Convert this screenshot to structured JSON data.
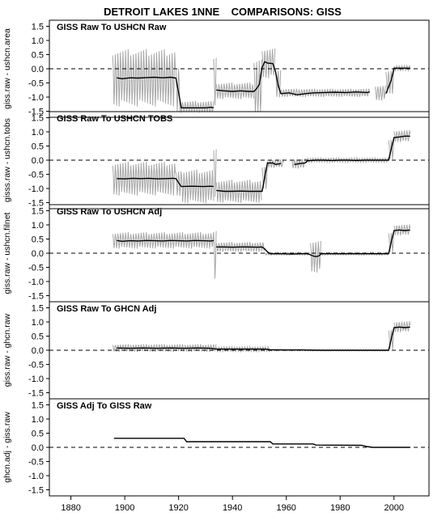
{
  "chart_data": {
    "type": "line",
    "title": "DETROIT LAKES 1NNE    COMPARISONS: GISS",
    "xlim": [
      1872,
      2013
    ],
    "x_ticks": [
      1880,
      1900,
      1920,
      1940,
      1960,
      1980,
      2000
    ],
    "ylim": [
      -1.6,
      1.6
    ],
    "y_ticks": [
      1.5,
      1.0,
      0.5,
      0.0,
      -0.5,
      -1.0,
      -1.5
    ],
    "y_tick_labels": [
      "1.5",
      "1.0",
      "0.5",
      "0.0",
      "-0.5",
      "-1.0",
      "-1.5"
    ],
    "reference_line": 0,
    "series_colors": {
      "monthly": "#a6a6a6",
      "annual": "#000000",
      "reference": "#000000"
    },
    "panels": [
      {
        "title": "GISS Raw To USHCN Raw",
        "ylabel": "giss.raw - ushcn.area",
        "annual_segments": [
          [
            [
              1897,
              -0.32
            ],
            [
              1899,
              -0.35
            ],
            [
              1902,
              -0.32
            ],
            [
              1905,
              -0.33
            ],
            [
              1908,
              -0.31
            ],
            [
              1911,
              -0.3
            ],
            [
              1914,
              -0.32
            ],
            [
              1917,
              -0.3
            ],
            [
              1919,
              -0.33
            ],
            [
              1920,
              -0.85
            ],
            [
              1921,
              -1.38
            ],
            [
              1926,
              -1.38
            ],
            [
              1930,
              -1.38
            ],
            [
              1932,
              -1.36
            ],
            [
              1933,
              -1.38
            ]
          ],
          [
            [
              1934,
              -0.75
            ],
            [
              1937,
              -0.78
            ],
            [
              1940,
              -0.8
            ],
            [
              1943,
              -0.78
            ],
            [
              1946,
              -0.8
            ],
            [
              1948,
              -0.8
            ],
            [
              1949,
              -0.7
            ],
            [
              1950,
              -0.55
            ],
            [
              1951,
              0.05
            ],
            [
              1952,
              0.25
            ],
            [
              1953,
              0.2
            ],
            [
              1955,
              0.18
            ],
            [
              1956,
              -0.1
            ],
            [
              1957,
              -0.6
            ],
            [
              1958,
              -0.88
            ],
            [
              1961,
              -0.85
            ],
            [
              1964,
              -0.92
            ],
            [
              1967,
              -0.88
            ],
            [
              1970,
              -0.85
            ],
            [
              1974,
              -0.84
            ],
            [
              1978,
              -0.83
            ],
            [
              1982,
              -0.84
            ],
            [
              1986,
              -0.82
            ],
            [
              1990,
              -0.84
            ],
            [
              1991,
              -0.82
            ]
          ],
          [
            [
              1997,
              -0.88
            ],
            [
              1999,
              -0.4
            ],
            [
              2000,
              0.02
            ],
            [
              2002,
              0.02
            ],
            [
              2004,
              0.02
            ],
            [
              2006,
              0.02
            ]
          ]
        ],
        "monthly_segments": [
          {
            "x": [
              1895.5,
              1919
            ],
            "center": -0.32,
            "amp": 1.05
          },
          {
            "x": [
              1919,
              1920.5
            ],
            "center": -0.7,
            "amp": 0.9
          },
          {
            "x": [
              1920.5,
              1933
            ],
            "center": -1.38,
            "amp": 0.25
          },
          {
            "x": [
              1933,
              1934
            ],
            "center": -0.4,
            "amp": 1.0
          },
          {
            "x": [
              1934,
              1948
            ],
            "center": -0.78,
            "amp": 0.3
          },
          {
            "x": [
              1948,
              1951
            ],
            "center": -0.7,
            "amp": 1.2
          },
          {
            "x": [
              1951,
              1956
            ],
            "center": 0.2,
            "amp": 0.55
          },
          {
            "x": [
              1956,
              1958
            ],
            "center": -0.5,
            "amp": 0.55
          },
          {
            "x": [
              1958,
              1991
            ],
            "center": -0.85,
            "amp": 0.15
          },
          {
            "x": [
              1993,
              1997
            ],
            "center": -0.85,
            "amp": 0.28
          },
          {
            "x": [
              1997,
              2000
            ],
            "center": -0.45,
            "amp": 0.45
          },
          {
            "x": [
              2000,
              2006
            ],
            "center": 0.02,
            "amp": 0.1
          }
        ]
      },
      {
        "title": "GISS Raw To USHCN TOBS",
        "ylabel": "gisss.raw - ushcn.tobs",
        "annual_segments": [
          [
            [
              1897,
              -0.65
            ],
            [
              1900,
              -0.66
            ],
            [
              1903,
              -0.64
            ],
            [
              1906,
              -0.65
            ],
            [
              1909,
              -0.64
            ],
            [
              1912,
              -0.66
            ],
            [
              1915,
              -0.65
            ],
            [
              1918,
              -0.64
            ],
            [
              1919,
              -0.65
            ],
            [
              1920,
              -0.8
            ],
            [
              1921,
              -0.93
            ],
            [
              1925,
              -0.92
            ],
            [
              1929,
              -0.93
            ],
            [
              1932,
              -0.92
            ],
            [
              1933,
              -0.93
            ]
          ],
          [
            [
              1934,
              -1.07
            ],
            [
              1937,
              -1.1
            ],
            [
              1940,
              -1.1
            ],
            [
              1943,
              -1.09
            ],
            [
              1946,
              -1.1
            ],
            [
              1949,
              -1.1
            ],
            [
              1951,
              -1.1
            ],
            [
              1952,
              -0.6
            ],
            [
              1953,
              -0.1
            ],
            [
              1955,
              -0.1
            ],
            [
              1956,
              -0.15
            ],
            [
              1958,
              -0.12
            ]
          ],
          [
            [
              1963,
              -0.15
            ],
            [
              1965,
              -0.12
            ],
            [
              1967,
              -0.1
            ],
            [
              1968,
              -0.02
            ],
            [
              1971,
              0.0
            ],
            [
              1974,
              0.0
            ],
            [
              1977,
              -0.01
            ],
            [
              1980,
              0.0
            ],
            [
              1983,
              0.0
            ],
            [
              1986,
              -0.01
            ],
            [
              1989,
              0.0
            ],
            [
              1992,
              0.0
            ],
            [
              1995,
              0.0
            ],
            [
              1998,
              0.0
            ],
            [
              1999,
              0.4
            ],
            [
              2000,
              0.8
            ],
            [
              2002,
              0.82
            ],
            [
              2004,
              0.85
            ],
            [
              2006,
              0.85
            ]
          ]
        ],
        "monthly_segments": [
          {
            "x": [
              1895.5,
              1919
            ],
            "center": -0.65,
            "amp": 0.62
          },
          {
            "x": [
              1919,
              1921
            ],
            "center": -0.8,
            "amp": 0.5
          },
          {
            "x": [
              1921,
              1933
            ],
            "center": -0.93,
            "amp": 0.62
          },
          {
            "x": [
              1933,
              1934
            ],
            "center": -0.4,
            "amp": 1.0
          },
          {
            "x": [
              1934,
              1951
            ],
            "center": -1.1,
            "amp": 0.42
          },
          {
            "x": [
              1951,
              1953
            ],
            "center": -0.6,
            "amp": 0.45
          },
          {
            "x": [
              1953,
              1959
            ],
            "center": -0.12,
            "amp": 0.15
          },
          {
            "x": [
              1962,
              1967
            ],
            "center": -0.12,
            "amp": 0.18
          },
          {
            "x": [
              1967,
              1998
            ],
            "center": 0.0,
            "amp": 0.08
          },
          {
            "x": [
              1998,
              2000
            ],
            "center": 0.4,
            "amp": 0.4
          },
          {
            "x": [
              2000,
              2006
            ],
            "center": 0.85,
            "amp": 0.22
          }
        ]
      },
      {
        "title": "GISS Raw To USHCN Adj",
        "ylabel": "giss.raw - ushcn.filnet",
        "annual_segments": [
          [
            [
              1897,
              0.45
            ],
            [
              1899,
              0.42
            ],
            [
              1902,
              0.44
            ],
            [
              1905,
              0.43
            ],
            [
              1908,
              0.45
            ],
            [
              1911,
              0.44
            ],
            [
              1914,
              0.43
            ],
            [
              1917,
              0.45
            ],
            [
              1920,
              0.44
            ],
            [
              1923,
              0.43
            ],
            [
              1926,
              0.45
            ],
            [
              1929,
              0.44
            ],
            [
              1932,
              0.43
            ],
            [
              1933,
              0.45
            ]
          ],
          [
            [
              1934,
              0.22
            ],
            [
              1937,
              0.22
            ],
            [
              1940,
              0.21
            ],
            [
              1943,
              0.22
            ],
            [
              1946,
              0.22
            ],
            [
              1949,
              0.21
            ],
            [
              1951,
              0.22
            ],
            [
              1952,
              0.15
            ],
            [
              1953,
              0.05
            ],
            [
              1954,
              -0.02
            ],
            [
              1956,
              -0.02
            ],
            [
              1959,
              -0.02
            ],
            [
              1962,
              -0.03
            ],
            [
              1965,
              -0.02
            ],
            [
              1968,
              -0.02
            ],
            [
              1970,
              -0.1
            ],
            [
              1971,
              -0.12
            ],
            [
              1972,
              -0.1
            ],
            [
              1973,
              -0.02
            ],
            [
              1976,
              -0.02
            ],
            [
              1980,
              -0.02
            ],
            [
              1984,
              -0.02
            ],
            [
              1988,
              -0.02
            ],
            [
              1992,
              -0.02
            ],
            [
              1996,
              -0.02
            ],
            [
              1998,
              -0.02
            ],
            [
              1999,
              0.4
            ],
            [
              2000,
              0.8
            ],
            [
              2002,
              0.82
            ],
            [
              2004,
              0.8
            ],
            [
              2006,
              0.82
            ]
          ]
        ],
        "monthly_segments": [
          {
            "x": [
              1895.5,
              1933
            ],
            "center": 0.45,
            "amp": 0.3
          },
          {
            "x": [
              1933,
              1934
            ],
            "center": 0.0,
            "amp": 1.0
          },
          {
            "x": [
              1934,
              1952
            ],
            "center": 0.22,
            "amp": 0.18
          },
          {
            "x": [
              1952,
              1969
            ],
            "center": -0.02,
            "amp": 0.05
          },
          {
            "x": [
              1969,
              1973
            ],
            "center": -0.1,
            "amp": 0.6
          },
          {
            "x": [
              1973,
              1998
            ],
            "center": -0.02,
            "amp": 0.05
          },
          {
            "x": [
              1998,
              2000
            ],
            "center": 0.4,
            "amp": 0.4
          },
          {
            "x": [
              2000,
              2006
            ],
            "center": 0.82,
            "amp": 0.2
          }
        ]
      },
      {
        "title": "GISS Raw To GHCN Adj",
        "ylabel": "giss.raw - ghcn.raw",
        "annual_segments": [
          [
            [
              1897,
              0.08
            ],
            [
              1902,
              0.07
            ],
            [
              1907,
              0.08
            ],
            [
              1912,
              0.07
            ],
            [
              1917,
              0.08
            ],
            [
              1922,
              0.07
            ],
            [
              1927,
              0.08
            ],
            [
              1932,
              0.07
            ],
            [
              1934,
              0.04
            ],
            [
              1940,
              0.04
            ],
            [
              1946,
              0.04
            ],
            [
              1952,
              0.04
            ],
            [
              1954,
              0.02
            ],
            [
              1960,
              0.01
            ],
            [
              1966,
              0.01
            ],
            [
              1972,
              0.0
            ],
            [
              1978,
              0.0
            ],
            [
              1984,
              0.0
            ],
            [
              1990,
              0.0
            ],
            [
              1996,
              0.0
            ],
            [
              1998,
              0.0
            ],
            [
              1999,
              0.4
            ],
            [
              2000,
              0.8
            ],
            [
              2002,
              0.82
            ],
            [
              2004,
              0.8
            ],
            [
              2006,
              0.82
            ]
          ]
        ],
        "monthly_segments": [
          {
            "x": [
              1895.5,
              1934
            ],
            "center": 0.08,
            "amp": 0.14
          },
          {
            "x": [
              1934,
              1954
            ],
            "center": 0.04,
            "amp": 0.09
          },
          {
            "x": [
              1954,
              1998
            ],
            "center": 0.0,
            "amp": 0.03
          },
          {
            "x": [
              1998,
              2000
            ],
            "center": 0.4,
            "amp": 0.4
          },
          {
            "x": [
              2000,
              2006
            ],
            "center": 0.83,
            "amp": 0.2
          }
        ]
      },
      {
        "title": "GISS Adj To GISS Raw",
        "ylabel": "ghcn.adj - giss.raw",
        "annual_segments": [
          [
            [
              1896,
              0.32
            ],
            [
              1910,
              0.32
            ],
            [
              1922,
              0.32
            ],
            [
              1923,
              0.2
            ],
            [
              1935,
              0.2
            ],
            [
              1954,
              0.2
            ],
            [
              1955,
              0.12
            ],
            [
              1970,
              0.12
            ],
            [
              1971,
              0.08
            ],
            [
              1988,
              0.07
            ],
            [
              1990,
              0.03
            ],
            [
              1992,
              0.0
            ],
            [
              2006,
              0.0
            ]
          ]
        ],
        "monthly_segments": []
      }
    ]
  }
}
